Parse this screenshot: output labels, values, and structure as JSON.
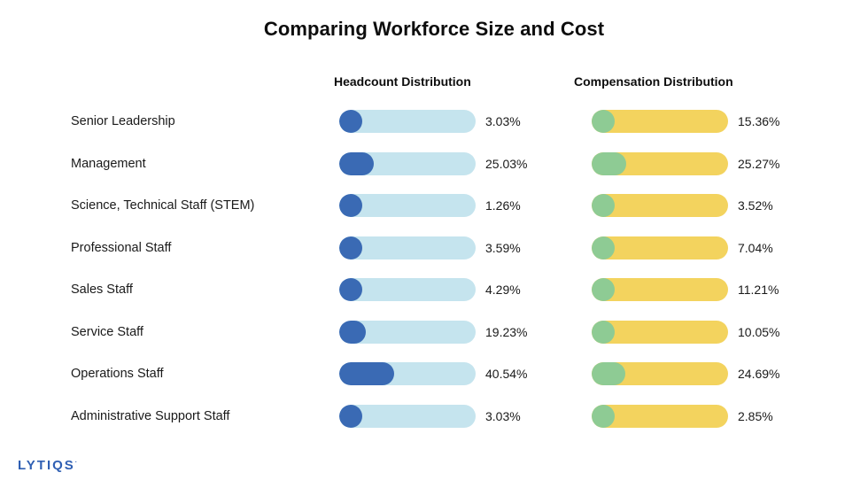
{
  "chart_data": {
    "type": "bar",
    "title": "Comparing Workforce Size and Cost",
    "categories": [
      "Senior Leadership",
      "Management",
      "Science, Technical Staff (STEM)",
      "Professional Staff",
      "Sales Staff",
      "Service Staff",
      "Operations Staff",
      "Administrative Support Staff"
    ],
    "series": [
      {
        "name": "Headcount Distribution",
        "values": [
          3.03,
          25.03,
          1.26,
          3.59,
          4.29,
          19.23,
          40.54,
          3.03
        ],
        "labels": [
          "3.03%",
          "25.03%",
          "1.26%",
          "3.59%",
          "4.29%",
          "19.23%",
          "40.54%",
          "3.03%"
        ],
        "fill_color": "#3a6ab4",
        "track_color": "#c5e4ee"
      },
      {
        "name": "Compensation Distribution",
        "values": [
          15.36,
          25.27,
          3.52,
          7.04,
          11.21,
          10.05,
          24.69,
          2.85
        ],
        "labels": [
          "15.36%",
          "25.27%",
          "3.52%",
          "7.04%",
          "11.21%",
          "10.05%",
          "24.69%",
          "2.85%"
        ],
        "fill_color": "#8ecb94",
        "track_color": "#f3d35e"
      }
    ],
    "ylim": [
      0,
      100
    ]
  },
  "logo": {
    "text": "LYTIQS",
    "mark": "."
  }
}
